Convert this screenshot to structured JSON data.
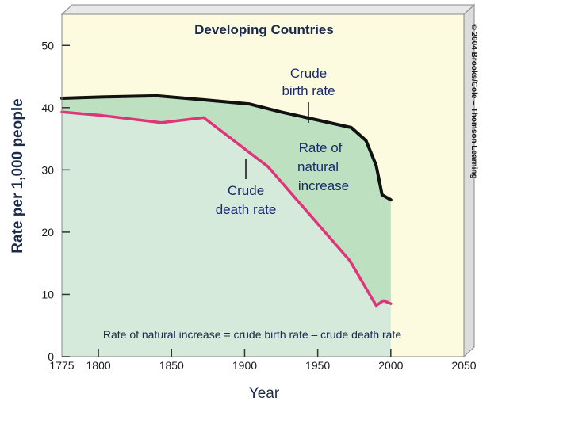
{
  "chart_data": {
    "type": "area",
    "title": "Developing Countries",
    "xlabel": "Year",
    "ylabel": "Rate per 1,000 people",
    "xlim": [
      1775,
      2050
    ],
    "ylim": [
      0,
      55
    ],
    "xticks": [
      "1775",
      "1800",
      "1850",
      "1900",
      "1950",
      "2000",
      "2050"
    ],
    "yticks": [
      "0",
      "10",
      "20",
      "30",
      "40",
      "50"
    ],
    "series": [
      {
        "name": "Crude birth rate",
        "color": "#111111",
        "points": [
          [
            1775,
            41.5
          ],
          [
            1800,
            41.7
          ],
          [
            1840,
            41.9
          ],
          [
            1870,
            41.3
          ],
          [
            1903,
            40.6
          ],
          [
            1925,
            39.3
          ],
          [
            1950,
            38.0
          ],
          [
            1973,
            36.8
          ],
          [
            1983,
            34.7
          ],
          [
            1990,
            30.7
          ],
          [
            1994,
            26.0
          ],
          [
            2000,
            25.2
          ]
        ]
      },
      {
        "name": "Crude death rate",
        "color": "#e0337a",
        "points": [
          [
            1775,
            39.3
          ],
          [
            1800,
            38.8
          ],
          [
            1843,
            37.6
          ],
          [
            1872,
            38.4
          ],
          [
            1916,
            30.5
          ],
          [
            1972,
            15.4
          ],
          [
            1990,
            8.2
          ],
          [
            1995,
            9.0
          ],
          [
            2000,
            8.5
          ]
        ]
      }
    ],
    "annotations": [
      "Crude birth rate",
      "Rate of natural increase",
      "Crude death rate",
      "Rate of natural increase = crude birth rate – crude death rate"
    ]
  },
  "labels": {
    "birth_line1": "Crude",
    "birth_line2": "birth rate",
    "rni_line1": "Rate of",
    "rni_line2": "natural",
    "rni_line3": "increase",
    "death_line1": "Crude",
    "death_line2": "death rate",
    "formula": "Rate of natural increase = crude birth rate – crude death rate",
    "credit": "© 2004 Brooks/Cole – Thomson Learning"
  },
  "colors": {
    "panel": "#fdfbdf",
    "panel_side": "#dddddd",
    "death_area": "#d5eadb",
    "rni_area": "#bde1c0",
    "birth_line": "#111111",
    "death_line": "#e0337a",
    "text": "#1a2a4a"
  }
}
